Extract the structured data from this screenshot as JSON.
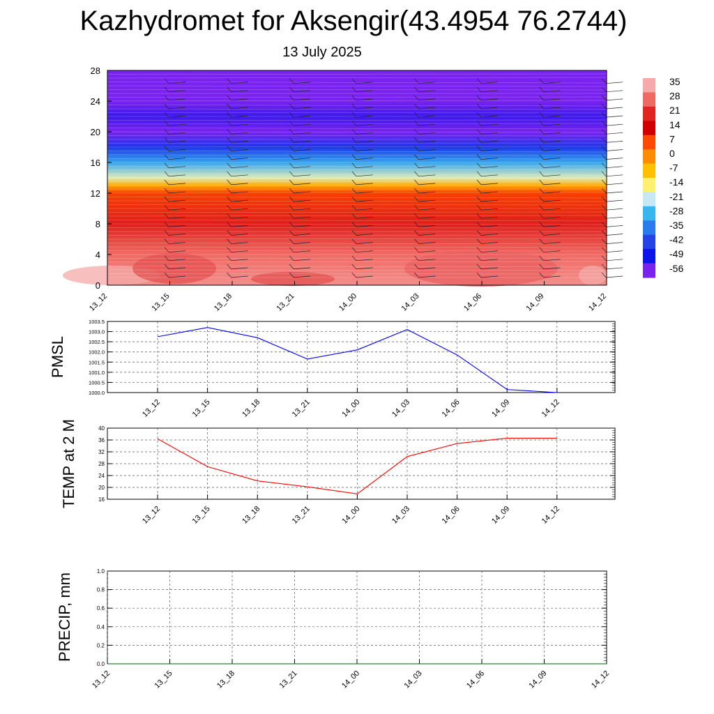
{
  "title": "Kazhydromet for Aksengir(43.4954 76.2744)",
  "subtitle": "13 July 2025",
  "times": [
    "13_12",
    "13_15",
    "13_18",
    "13_21",
    "14_00",
    "14_03",
    "14_06",
    "14_09",
    "14_12"
  ],
  "chart_data": [
    {
      "type": "heatmap",
      "name": "temperature-cross-section",
      "title": "",
      "xlabel": "",
      "ylabel": "",
      "ylim": [
        0,
        28
      ],
      "yticks": [
        0,
        4,
        8,
        12,
        16,
        20,
        24,
        28
      ],
      "categories": [
        "13_12",
        "13_15",
        "13_18",
        "13_21",
        "14_00",
        "14_03",
        "14_06",
        "14_09",
        "14_12"
      ],
      "colorbar_labels": [
        "35",
        "28",
        "21",
        "14",
        "7",
        "0",
        "-7",
        "-14",
        "-21",
        "-28",
        "-35",
        "-42",
        "-49",
        "-56"
      ],
      "colorbar_colors": [
        "#f4aaa8",
        "#f06a64",
        "#e02420",
        "#d00000",
        "#ff4a00",
        "#ff8c00",
        "#ffc000",
        "#fff070",
        "#c6e8f2",
        "#38b6ee",
        "#2a7cee",
        "#2444e8",
        "#0c14e8",
        "#7a22ee"
      ],
      "levels": [
        {
          "height": 0,
          "temp": 32
        },
        {
          "height": 4,
          "temp": 28
        },
        {
          "height": 8,
          "temp": 20
        },
        {
          "height": 12,
          "temp": 8
        },
        {
          "height": 13,
          "temp": -4
        },
        {
          "height": 14,
          "temp": -18
        },
        {
          "height": 16,
          "temp": -30
        },
        {
          "height": 18,
          "temp": -44
        },
        {
          "height": 20,
          "temp": -58
        },
        {
          "height": 22,
          "temp": -52
        },
        {
          "height": 24,
          "temp": -60
        },
        {
          "height": 28,
          "temp": -62
        }
      ],
      "wind_barbs": true
    },
    {
      "type": "line",
      "name": "pmsl",
      "ylabel": "PMSL",
      "ylim": [
        1000.0,
        1003.5
      ],
      "yticks": [
        "1000.0",
        "1000.5",
        "1001.0",
        "1001.5",
        "1002.0",
        "1002.5",
        "1003.0",
        "1003.5"
      ],
      "categories": [
        "13_12",
        "13_15",
        "13_18",
        "13_21",
        "14_00",
        "14_03",
        "14_06",
        "14_09",
        "14_12"
      ],
      "series": [
        {
          "values": [
            1002.75,
            1003.2,
            1002.7,
            1001.65,
            1002.1,
            1003.1,
            1001.85,
            1000.15,
            1000.0
          ],
          "color": "#0000ff"
        }
      ],
      "grid": true
    },
    {
      "type": "line",
      "name": "temp-2m",
      "ylabel": "TEMP at 2 M",
      "ylim": [
        16,
        40
      ],
      "yticks": [
        "16",
        "20",
        "24",
        "28",
        "32",
        "36",
        "40"
      ],
      "categories": [
        "13_12",
        "13_15",
        "13_18",
        "13_21",
        "14_00",
        "14_03",
        "14_06",
        "14_09",
        "14_12"
      ],
      "series": [
        {
          "values": [
            36.4,
            27.0,
            22.2,
            20.2,
            17.8,
            30.4,
            34.8,
            36.6,
            36.6
          ],
          "color": "#ff0000"
        }
      ],
      "grid": true
    },
    {
      "type": "line",
      "name": "precip",
      "ylabel": "PRECIP, mm",
      "ylim": [
        0.0,
        1.0
      ],
      "yticks": [
        "0.0",
        "0.2",
        "0.4",
        "0.6",
        "0.8",
        "1.0"
      ],
      "categories": [
        "13_12",
        "13_15",
        "13_18",
        "13_21",
        "14_00",
        "14_03",
        "14_06",
        "14_09",
        "14_12"
      ],
      "series": [
        {
          "values": [
            0,
            0,
            0,
            0,
            0,
            0,
            0,
            0,
            0
          ],
          "color": "#006400"
        }
      ],
      "grid": true
    }
  ]
}
